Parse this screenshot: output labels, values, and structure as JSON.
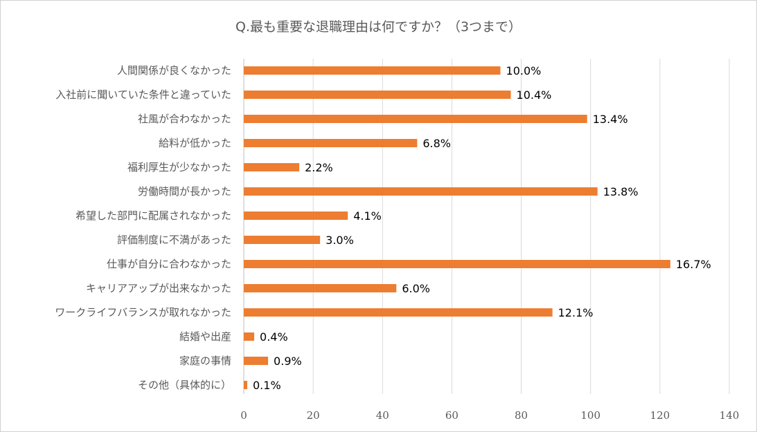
{
  "chart_data": {
    "type": "bar",
    "orientation": "horizontal",
    "title": "Q.最も重要な退職理由は何ですか？（3つまで）",
    "categories": [
      "人間関係が良くなかった",
      "入社前に聞いていた条件と違っていた",
      "社風が合わなかった",
      "給料が低かった",
      "福利厚生が少なかった",
      "労働時間が長かった",
      "希望した部門に配属されなかった",
      "評価制度に不満があった",
      "仕事が自分に合わなかった",
      "キャリアアップが出来なかった",
      "ワークライフバランスが取れなかった",
      "結婚や出産",
      "家庭の事情",
      "その他（具体的に）"
    ],
    "values": [
      74,
      77,
      99,
      50,
      16,
      102,
      30,
      22,
      123,
      44,
      89,
      3,
      7,
      1
    ],
    "data_labels": [
      "10.0%",
      "10.4%",
      "13.4%",
      "6.8%",
      "2.2%",
      "13.8%",
      "4.1%",
      "3.0%",
      "16.7%",
      "6.0%",
      "12.1%",
      "0.4%",
      "0.9%",
      "0.1%"
    ],
    "xlim": [
      0,
      140
    ],
    "xticks": [
      "0",
      "20",
      "40",
      "60",
      "80",
      "100",
      "120",
      "140"
    ],
    "grid": true,
    "bar_color": "#ED7D31",
    "grid_color": "#D9D9D9"
  }
}
